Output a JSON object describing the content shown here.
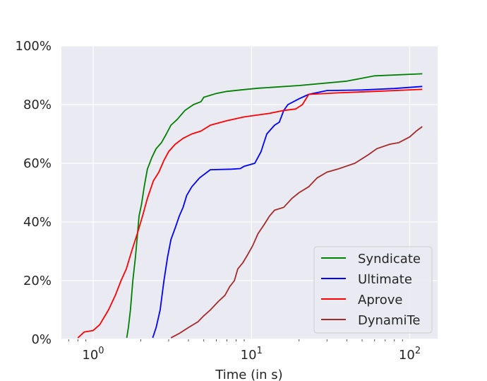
{
  "chart_data": {
    "type": "line",
    "title": "",
    "xlabel": "Time (in s)",
    "ylabel": "",
    "xscale": "log",
    "xlim": [
      0.63,
      150
    ],
    "ylim": [
      0,
      1
    ],
    "x_ticks": [
      {
        "value": 1,
        "base": "10",
        "exp": "0"
      },
      {
        "value": 10,
        "base": "10",
        "exp": "1"
      },
      {
        "value": 100,
        "base": "10",
        "exp": "2"
      }
    ],
    "y_ticks": [
      {
        "value": 0,
        "label": "0%"
      },
      {
        "value": 0.2,
        "label": "20%"
      },
      {
        "value": 0.4,
        "label": "40%"
      },
      {
        "value": 0.6,
        "label": "60%"
      },
      {
        "value": 0.8,
        "label": "80%"
      },
      {
        "value": 1.0,
        "label": "100%"
      }
    ],
    "grid": true,
    "legend_position": "lower-right",
    "series": [
      {
        "name": "Syndicate",
        "color": "#008000",
        "points": [
          [
            1.63,
            0.005
          ],
          [
            1.67,
            0.04
          ],
          [
            1.72,
            0.1
          ],
          [
            1.78,
            0.2
          ],
          [
            1.85,
            0.28
          ],
          [
            1.9,
            0.35
          ],
          [
            1.95,
            0.42
          ],
          [
            2.02,
            0.46
          ],
          [
            2.1,
            0.52
          ],
          [
            2.2,
            0.58
          ],
          [
            2.35,
            0.62
          ],
          [
            2.5,
            0.65
          ],
          [
            2.7,
            0.67
          ],
          [
            2.9,
            0.7
          ],
          [
            3.1,
            0.73
          ],
          [
            3.4,
            0.75
          ],
          [
            3.8,
            0.78
          ],
          [
            4.3,
            0.8
          ],
          [
            4.8,
            0.81
          ],
          [
            5.0,
            0.825
          ],
          [
            6.0,
            0.838
          ],
          [
            7.0,
            0.845
          ],
          [
            8.5,
            0.85
          ],
          [
            11,
            0.856
          ],
          [
            20,
            0.865
          ],
          [
            40,
            0.88
          ],
          [
            60,
            0.898
          ],
          [
            120,
            0.905
          ]
        ]
      },
      {
        "name": "Ultimate",
        "color": "#0000ff",
        "points": [
          [
            2.38,
            0.005
          ],
          [
            2.5,
            0.04
          ],
          [
            2.65,
            0.1
          ],
          [
            2.8,
            0.2
          ],
          [
            2.95,
            0.28
          ],
          [
            3.1,
            0.34
          ],
          [
            3.3,
            0.38
          ],
          [
            3.5,
            0.42
          ],
          [
            3.7,
            0.45
          ],
          [
            3.9,
            0.49
          ],
          [
            4.2,
            0.52
          ],
          [
            4.7,
            0.55
          ],
          [
            5.5,
            0.578
          ],
          [
            7.5,
            0.58
          ],
          [
            8.5,
            0.582
          ],
          [
            9.0,
            0.59
          ],
          [
            10.5,
            0.6
          ],
          [
            11.5,
            0.64
          ],
          [
            12.5,
            0.7
          ],
          [
            14,
            0.73
          ],
          [
            15,
            0.74
          ],
          [
            16,
            0.78
          ],
          [
            17,
            0.8
          ],
          [
            20,
            0.82
          ],
          [
            23,
            0.835
          ],
          [
            30,
            0.848
          ],
          [
            50,
            0.85
          ],
          [
            80,
            0.855
          ],
          [
            120,
            0.862
          ]
        ]
      },
      {
        "name": "Aprove",
        "color": "#ff0000",
        "points": [
          [
            0.8,
            0.005
          ],
          [
            0.88,
            0.025
          ],
          [
            1.0,
            0.03
          ],
          [
            1.1,
            0.05
          ],
          [
            1.25,
            0.1
          ],
          [
            1.38,
            0.15
          ],
          [
            1.5,
            0.2
          ],
          [
            1.62,
            0.24
          ],
          [
            1.75,
            0.3
          ],
          [
            1.9,
            0.36
          ],
          [
            2.05,
            0.42
          ],
          [
            2.2,
            0.48
          ],
          [
            2.4,
            0.54
          ],
          [
            2.6,
            0.57
          ],
          [
            2.8,
            0.61
          ],
          [
            3.0,
            0.64
          ],
          [
            3.3,
            0.665
          ],
          [
            3.7,
            0.685
          ],
          [
            4.2,
            0.7
          ],
          [
            4.8,
            0.71
          ],
          [
            5.5,
            0.73
          ],
          [
            7.0,
            0.745
          ],
          [
            9,
            0.758
          ],
          [
            13,
            0.77
          ],
          [
            16,
            0.78
          ],
          [
            19,
            0.785
          ],
          [
            21,
            0.8
          ],
          [
            23,
            0.835
          ],
          [
            35,
            0.84
          ],
          [
            60,
            0.845
          ],
          [
            120,
            0.852
          ]
        ]
      },
      {
        "name": "DynamiTe",
        "color": "#a52a2a",
        "points": [
          [
            3.1,
            0.005
          ],
          [
            3.5,
            0.02
          ],
          [
            4.0,
            0.04
          ],
          [
            4.6,
            0.06
          ],
          [
            5.0,
            0.08
          ],
          [
            5.5,
            0.1
          ],
          [
            6.2,
            0.13
          ],
          [
            6.8,
            0.15
          ],
          [
            7.3,
            0.18
          ],
          [
            7.8,
            0.2
          ],
          [
            8.2,
            0.24
          ],
          [
            8.8,
            0.26
          ],
          [
            9.5,
            0.29
          ],
          [
            10.2,
            0.32
          ],
          [
            11,
            0.36
          ],
          [
            12,
            0.39
          ],
          [
            13,
            0.42
          ],
          [
            14,
            0.44
          ],
          [
            16,
            0.45
          ],
          [
            18,
            0.48
          ],
          [
            20,
            0.5
          ],
          [
            23,
            0.52
          ],
          [
            26,
            0.55
          ],
          [
            30,
            0.57
          ],
          [
            35,
            0.58
          ],
          [
            45,
            0.6
          ],
          [
            55,
            0.63
          ],
          [
            62,
            0.65
          ],
          [
            75,
            0.665
          ],
          [
            85,
            0.67
          ],
          [
            100,
            0.69
          ],
          [
            110,
            0.71
          ],
          [
            120,
            0.725
          ]
        ]
      }
    ]
  }
}
